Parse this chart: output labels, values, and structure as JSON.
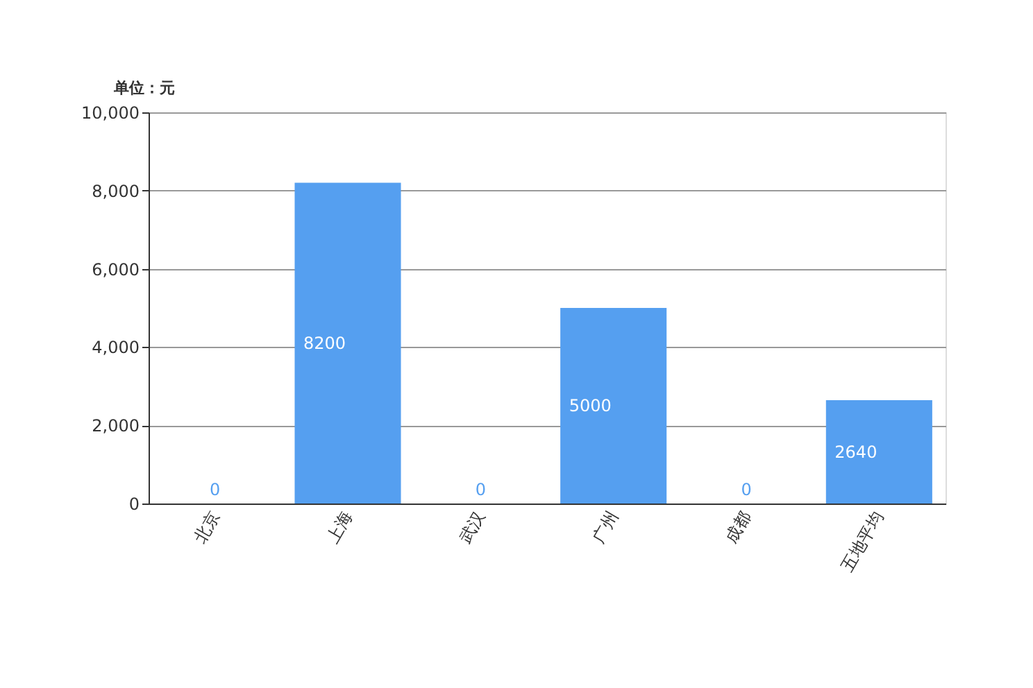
{
  "chart_data": {
    "type": "bar",
    "ylabel": "单位：元",
    "categories": [
      "北京",
      "上海",
      "武汉",
      "广州",
      "成都",
      "五地平均"
    ],
    "series": [
      {
        "color": "#559ff0",
        "values": [
          0,
          8200,
          0,
          5000,
          0,
          2640
        ]
      }
    ],
    "ylim": [
      0,
      10000
    ],
    "yticks": [
      {
        "value": 0,
        "label": "0"
      },
      {
        "value": 2000,
        "label": "2,000"
      },
      {
        "value": 4000,
        "label": "4,000"
      },
      {
        "value": 6000,
        "label": "6,000"
      },
      {
        "value": 8000,
        "label": "8,000"
      },
      {
        "value": 10000,
        "label": "10,000"
      }
    ],
    "grid": "y",
    "data_labels": true,
    "legend": false
  }
}
